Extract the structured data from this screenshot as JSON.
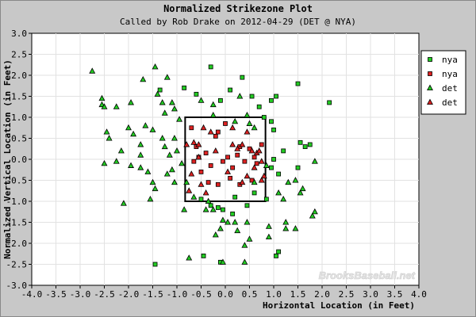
{
  "chart_data": {
    "type": "scatter",
    "title": "Normalized Strikezone Plot",
    "subtitle": "Called by Rob Drake on 2012-04-29 (DET @ NYA)",
    "xlabel": "Horizontal Location (in Feet)",
    "ylabel": "Normalized Vertical Location (in Feet)",
    "xlim": [
      -4.0,
      4.0
    ],
    "ylim": [
      -3.0,
      3.0
    ],
    "x_ticks": [
      "-4.0",
      "-3.5",
      "-3.0",
      "-2.5",
      "-2.0",
      "-1.5",
      "-1.0",
      "-0.5",
      "0.0",
      "0.5",
      "1.0",
      "1.5",
      "2.0",
      "2.5",
      "3.0",
      "3.5",
      "4.0"
    ],
    "y_ticks": [
      "3.0",
      "2.5",
      "2.0",
      "1.5",
      "1.0",
      "0.5",
      "0.0",
      "-0.5",
      "-1.0",
      "-1.5",
      "-2.0",
      "-2.5",
      "-3.0"
    ],
    "grid": true,
    "legend_position": "top-right",
    "watermark": "BrooksBaseball.net",
    "strike_zone": {
      "x": [
        -0.83,
        0.83
      ],
      "y": [
        -1.0,
        1.0
      ]
    },
    "colors": {
      "green": "#22cc22",
      "red": "#dd2222",
      "plot_bg": "#ffffff",
      "outer_bg": "#c8c8c8",
      "grid": "#e2e2e2"
    },
    "series": [
      {
        "name": "nya",
        "marker": "square",
        "color": "#22cc22",
        "points": [
          [
            -1.35,
            1.65
          ],
          [
            -0.85,
            1.7
          ],
          [
            -0.6,
            1.55
          ],
          [
            -0.3,
            2.2
          ],
          [
            -0.1,
            1.4
          ],
          [
            0.1,
            1.65
          ],
          [
            0.35,
            1.95
          ],
          [
            0.55,
            1.5
          ],
          [
            0.7,
            1.25
          ],
          [
            0.95,
            1.4
          ],
          [
            1.05,
            1.5
          ],
          [
            1.5,
            1.8
          ],
          [
            2.15,
            1.35
          ],
          [
            0.8,
            1.0
          ],
          [
            0.95,
            0.9
          ],
          [
            1.0,
            0.7
          ],
          [
            1.55,
            0.4
          ],
          [
            1.65,
            0.3
          ],
          [
            1.75,
            0.35
          ],
          [
            1.2,
            0.2
          ],
          [
            1.0,
            0.0
          ],
          [
            0.95,
            -0.2
          ],
          [
            1.5,
            -0.2
          ],
          [
            1.1,
            -0.35
          ],
          [
            0.2,
            -0.9
          ],
          [
            0.45,
            -1.1
          ],
          [
            0.6,
            -0.8
          ],
          [
            0.85,
            -0.95
          ],
          [
            -0.5,
            -0.95
          ],
          [
            -0.3,
            -1.1
          ],
          [
            -0.15,
            -1.15
          ],
          [
            -0.05,
            -1.2
          ],
          [
            0.15,
            -1.3
          ],
          [
            -0.45,
            -2.3
          ],
          [
            -0.1,
            -2.45
          ],
          [
            1.05,
            -2.3
          ],
          [
            1.1,
            -2.2
          ],
          [
            -1.45,
            -2.5
          ]
        ]
      },
      {
        "name": "nya",
        "marker": "square",
        "color": "#dd2222",
        "points": [
          [
            -0.7,
            0.75
          ],
          [
            -0.6,
            0.3
          ],
          [
            -0.55,
            0.05
          ],
          [
            -0.4,
            0.15
          ],
          [
            -0.3,
            -0.15
          ],
          [
            -0.2,
            0.55
          ],
          [
            -0.15,
            0.65
          ],
          [
            -0.05,
            -0.05
          ],
          [
            0.05,
            0.05
          ],
          [
            0.15,
            -0.2
          ],
          [
            0.25,
            0.1
          ],
          [
            0.3,
            0.3
          ],
          [
            0.4,
            -0.05
          ],
          [
            0.5,
            0.25
          ],
          [
            0.6,
            0.05
          ],
          [
            0.75,
            0.35
          ],
          [
            0.65,
            -0.1
          ],
          [
            0.0,
            0.85
          ],
          [
            -0.35,
            -0.55
          ],
          [
            -0.15,
            -0.6
          ],
          [
            0.1,
            -0.45
          ],
          [
            -0.5,
            -0.3
          ],
          [
            0.55,
            -0.5
          ],
          [
            -0.65,
            -0.05
          ],
          [
            0.3,
            -0.6
          ]
        ]
      },
      {
        "name": "det",
        "marker": "triangle",
        "color": "#22cc22",
        "points": [
          [
            -2.75,
            2.1
          ],
          [
            -2.55,
            1.45
          ],
          [
            -2.55,
            1.3
          ],
          [
            -2.5,
            1.25
          ],
          [
            -2.25,
            1.25
          ],
          [
            -1.95,
            1.35
          ],
          [
            -1.7,
            1.9
          ],
          [
            -1.45,
            2.2
          ],
          [
            -1.2,
            1.95
          ],
          [
            -1.4,
            1.55
          ],
          [
            -1.3,
            1.35
          ],
          [
            -1.1,
            1.35
          ],
          [
            -1.25,
            1.1
          ],
          [
            -1.05,
            1.2
          ],
          [
            -0.95,
            0.95
          ],
          [
            -2.45,
            0.65
          ],
          [
            -2.4,
            0.5
          ],
          [
            -2.15,
            0.2
          ],
          [
            -2.0,
            0.75
          ],
          [
            -1.9,
            0.6
          ],
          [
            -1.75,
            0.35
          ],
          [
            -1.75,
            0.1
          ],
          [
            -1.65,
            0.8
          ],
          [
            -1.5,
            0.7
          ],
          [
            -1.3,
            0.5
          ],
          [
            -1.25,
            0.3
          ],
          [
            -1.05,
            0.5
          ],
          [
            -1.15,
            0.1
          ],
          [
            -1.0,
            0.2
          ],
          [
            -0.9,
            -0.1
          ],
          [
            -2.5,
            -0.1
          ],
          [
            -2.25,
            -0.05
          ],
          [
            -1.95,
            -0.15
          ],
          [
            -1.75,
            -0.2
          ],
          [
            -1.6,
            -0.3
          ],
          [
            -1.5,
            -0.55
          ],
          [
            -1.45,
            -0.7
          ],
          [
            -1.55,
            -0.95
          ],
          [
            -2.1,
            -1.05
          ],
          [
            -1.1,
            -0.25
          ],
          [
            -1.2,
            -0.35
          ],
          [
            -1.05,
            -0.55
          ],
          [
            -0.8,
            -0.55
          ],
          [
            -0.5,
            1.4
          ],
          [
            -0.25,
            1.3
          ],
          [
            -0.25,
            1.05
          ],
          [
            0.3,
            1.5
          ],
          [
            0.45,
            1.05
          ],
          [
            0.2,
            0.9
          ],
          [
            0.5,
            0.85
          ],
          [
            0.6,
            0.75
          ],
          [
            1.85,
            -0.05
          ],
          [
            1.45,
            -0.5
          ],
          [
            1.3,
            -0.55
          ],
          [
            1.1,
            -0.8
          ],
          [
            1.2,
            -0.95
          ],
          [
            1.55,
            -0.8
          ],
          [
            1.6,
            -0.7
          ],
          [
            -0.85,
            -1.2
          ],
          [
            -0.4,
            -1.2
          ],
          [
            -0.25,
            -1.2
          ],
          [
            -0.05,
            -1.45
          ],
          [
            -0.1,
            -1.65
          ],
          [
            0.05,
            -1.5
          ],
          [
            0.2,
            -1.5
          ],
          [
            0.45,
            -1.5
          ],
          [
            0.5,
            -1.9
          ],
          [
            0.4,
            -2.05
          ],
          [
            -0.2,
            -1.8
          ],
          [
            0.25,
            -1.7
          ],
          [
            0.9,
            -1.6
          ],
          [
            0.9,
            -1.85
          ],
          [
            1.25,
            -1.65
          ],
          [
            1.45,
            -1.65
          ],
          [
            1.85,
            -1.25
          ],
          [
            1.8,
            -1.35
          ],
          [
            1.25,
            -1.5
          ],
          [
            -0.75,
            -2.35
          ],
          [
            -0.05,
            -2.45
          ],
          [
            0.4,
            -2.45
          ],
          [
            -0.35,
            -1.0
          ],
          [
            -0.65,
            -0.9
          ],
          [
            0.6,
            -0.55
          ],
          [
            0.85,
            -0.15
          ]
        ]
      },
      {
        "name": "det",
        "marker": "triangle",
        "color": "#dd2222",
        "points": [
          [
            -0.8,
            0.35
          ],
          [
            -0.65,
            0.4
          ],
          [
            -0.55,
            0.35
          ],
          [
            -0.45,
            0.75
          ],
          [
            -0.3,
            0.65
          ],
          [
            -0.2,
            0.2
          ],
          [
            0.15,
            0.75
          ],
          [
            0.25,
            0.25
          ],
          [
            0.35,
            0.35
          ],
          [
            0.45,
            0.65
          ],
          [
            0.55,
            0.2
          ],
          [
            0.65,
            0.15
          ],
          [
            0.7,
            0.2
          ],
          [
            0.75,
            -0.05
          ],
          [
            0.8,
            -0.4
          ],
          [
            0.6,
            -0.2
          ],
          [
            0.45,
            -0.4
          ],
          [
            0.35,
            -0.55
          ],
          [
            -0.55,
            0.05
          ],
          [
            -0.7,
            -0.35
          ],
          [
            -0.75,
            -0.75
          ],
          [
            -0.5,
            -0.6
          ],
          [
            -0.4,
            -0.8
          ],
          [
            0.15,
            0.35
          ],
          [
            0.05,
            -0.3
          ],
          [
            0.75,
            -0.5
          ]
        ]
      }
    ]
  }
}
